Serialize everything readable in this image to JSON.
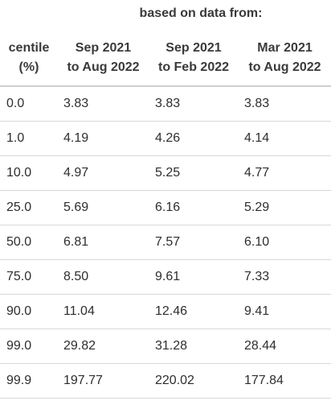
{
  "table": {
    "group_header": "based on data from:",
    "columns": [
      {
        "line1": "centile",
        "line2": "(%)"
      },
      {
        "line1": "Sep 2021",
        "line2": "to Aug 2022"
      },
      {
        "line1": "Sep 2021",
        "line2": "to Feb 2022"
      },
      {
        "line1": "Mar 2021",
        "line2": "to Aug 2022"
      }
    ],
    "rows": [
      [
        "0.0",
        "3.83",
        "3.83",
        "3.83"
      ],
      [
        "1.0",
        "4.19",
        "4.26",
        "4.14"
      ],
      [
        "10.0",
        "4.97",
        "5.25",
        "4.77"
      ],
      [
        "25.0",
        "5.69",
        "6.16",
        "5.29"
      ],
      [
        "50.0",
        "6.81",
        "7.57",
        "6.10"
      ],
      [
        "75.0",
        "8.50",
        "9.61",
        "7.33"
      ],
      [
        "90.0",
        "11.04",
        "12.46",
        "9.41"
      ],
      [
        "99.0",
        "29.82",
        "31.28",
        "28.44"
      ],
      [
        "99.9",
        "197.77",
        "220.02",
        "177.84"
      ]
    ]
  }
}
